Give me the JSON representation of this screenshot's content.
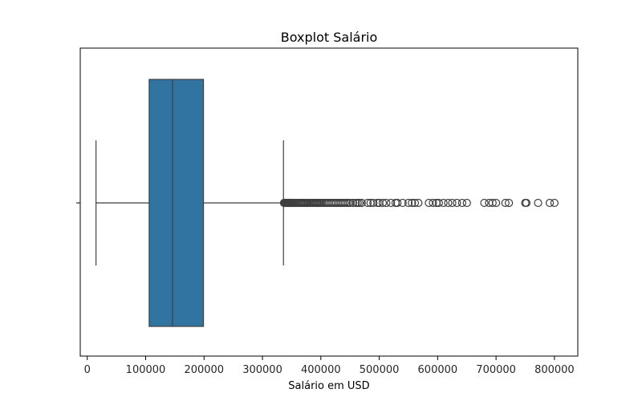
{
  "chart_data": {
    "type": "boxplot",
    "orientation": "horizontal",
    "title": "Boxplot Salário",
    "xlabel": "Salário em USD",
    "ylabel": "",
    "xlim": [
      -12000,
      840000
    ],
    "x_ticks": [
      0,
      100000,
      200000,
      300000,
      400000,
      500000,
      600000,
      700000,
      800000
    ],
    "x_tick_labels": [
      "0",
      "100000",
      "200000",
      "300000",
      "400000",
      "500000",
      "600000",
      "700000",
      "800000"
    ],
    "grid": false,
    "box": {
      "whisker_low": 15000,
      "q1": 106000,
      "median": 146000,
      "q3": 199000,
      "whisker_high": 336000
    },
    "outliers": [
      337000,
      338000,
      339000,
      340000,
      341000,
      342000,
      343000,
      344000,
      345000,
      346000,
      347000,
      348000,
      349000,
      350000,
      352000,
      354000,
      356000,
      358000,
      360000,
      362000,
      364000,
      366000,
      368000,
      370000,
      372000,
      374000,
      376000,
      378000,
      380000,
      382000,
      384000,
      386000,
      388000,
      390000,
      392000,
      394000,
      396000,
      398000,
      400000,
      402000,
      405000,
      408000,
      411000,
      414000,
      417000,
      420000,
      423000,
      426000,
      429000,
      432000,
      435000,
      438000,
      441000,
      444000,
      447000,
      450000,
      455000,
      460000,
      463000,
      466000,
      470000,
      480000,
      485000,
      490000,
      497000,
      500000,
      506000,
      512000,
      520000,
      528000,
      531000,
      540000,
      550000,
      556000,
      561000,
      567000,
      585000,
      592000,
      598000,
      602000,
      610000,
      618000,
      625000,
      633000,
      642000,
      650000,
      680000,
      688000,
      694000,
      700000,
      716000,
      722000,
      750000,
      752000,
      772000,
      792000,
      800000
    ],
    "colors": {
      "box_fill": "#3274a1",
      "line": "#3f3f3f",
      "axes": "#000000"
    }
  }
}
